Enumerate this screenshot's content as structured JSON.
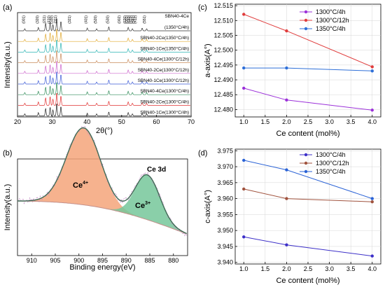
{
  "panel_labels": [
    "(a)",
    "(b)",
    "(c)",
    "(d)"
  ],
  "chart_data": [
    {
      "panel": "(a)",
      "type": "line",
      "xlabel": "2θ(°)",
      "ylabel": "Intensity(a.u.)",
      "xlim": [
        20,
        70
      ],
      "xticks": [
        20,
        30,
        40,
        50,
        60,
        70
      ],
      "peak_positions": [
        22.1,
        26.0,
        28.1,
        29.4,
        30.2,
        31.3,
        32.5,
        40.1,
        42.8,
        46.3,
        51.9,
        53.1,
        55.9,
        57.2
      ],
      "hkl_labels": [
        "(001)",
        "(320)",
        "(211)",
        "(410)",
        "(330)",
        "(311)",
        "(321)",
        "(401)",
        "(520)",
        "(530)",
        "(002)",
        "(630)",
        "(001)",
        "(640)",
        "(322)",
        "(541)",
        "(412)",
        "(551)"
      ],
      "series": [
        {
          "name": "SBN40-4Ce(1350°C/4h)",
          "color": "#333333"
        },
        {
          "name": "SBN40-2Ce(1350°C/4h)",
          "color": "#e0a82e"
        },
        {
          "name": "SBN40-1Ce(1350°C/4h)",
          "color": "#2ab3b3"
        },
        {
          "name": "SBN40-4Ce(1300°C/12h)",
          "color": "#c98b5a"
        },
        {
          "name": "SBN40-2Ce(1300°C/12h)",
          "color": "#cc66cc"
        },
        {
          "name": "SBN40-1Ce(1300°C/12h)",
          "color": "#3d5bd6"
        },
        {
          "name": "SBN40-4Ce(1300°C/4h)",
          "color": "#2e8b57"
        },
        {
          "name": "SBN40-2Ce(1300°C/4h)",
          "color": "#e03030"
        },
        {
          "name": "SBN40-1Ce(1300°C/4h)",
          "color": "#222222"
        }
      ],
      "label_texts": [
        "SBN40-4Ce",
        "(1350°C/4h)",
        "SBN40-2Ce(1350°C/4h)",
        "SBN40-1Ce(1350°C/4h)",
        "SBN40-4Ce(1300°C/12h)",
        "SBN40-2Ce(1300°C/12h)",
        "SBN40-1Ce(1300°C/12h)",
        "SBN40-4Ce(1300°C/4h)",
        "SBN40-2Ce(1300°C/4h)",
        "SBN40-1Ce(1300°C/4h)"
      ]
    },
    {
      "panel": "(b)",
      "type": "line",
      "title": "Ce 3d",
      "xlabel": "Binding energy(eV)",
      "ylabel": "Intensity(a.u.)",
      "xlim": [
        913,
        877
      ],
      "xticks": [
        910,
        905,
        900,
        895,
        890,
        885,
        880
      ],
      "peaks": [
        {
          "label": "Ce4+",
          "center": 899.0,
          "height": 0.55,
          "width": 3.6,
          "color": "#f4a47a"
        },
        {
          "label": "Ce3+",
          "center": 885.5,
          "height": 0.32,
          "width": 2.6,
          "color": "#76c79a"
        }
      ],
      "peak_label_main": [
        "Ce",
        "Ce"
      ],
      "peak_label_sup": [
        "4+",
        "3+"
      ],
      "fit_color": "#3f6b55",
      "background_color": "#c4908a",
      "raw_color": "#c48fc4"
    },
    {
      "panel": "(c)",
      "type": "line",
      "xlabel": "Ce content (mol%)",
      "ylabel": "a-axis(A°)",
      "xlim": [
        0.8,
        4.2
      ],
      "ylim": [
        12.4775,
        12.5155
      ],
      "xticks": [
        1.0,
        1.5,
        2.0,
        2.5,
        3.0,
        3.5,
        4.0
      ],
      "yticks": [
        12.48,
        12.485,
        12.49,
        12.495,
        12.5,
        12.505,
        12.51,
        12.515
      ],
      "x": [
        1.0,
        2.0,
        4.0
      ],
      "legend_position": "top-right",
      "series": [
        {
          "name": "1300°C/4h",
          "values": [
            12.4872,
            12.4832,
            12.4798
          ],
          "color": "#9b30d9"
        },
        {
          "name": "1300°C/12h",
          "values": [
            12.5121,
            12.5065,
            12.4944
          ],
          "color": "#e03c3c"
        },
        {
          "name": "1350°C/4h",
          "values": [
            12.494,
            12.494,
            12.493
          ],
          "color": "#2e6fd8"
        }
      ]
    },
    {
      "panel": "(d)",
      "type": "line",
      "xlabel": "Ce content (mol%)",
      "ylabel": "c-axis(A°)",
      "xlim": [
        0.8,
        4.2
      ],
      "ylim": [
        3.9395,
        3.9755
      ],
      "xticks": [
        1.0,
        1.5,
        2.0,
        2.5,
        3.0,
        3.5,
        4.0
      ],
      "yticks": [
        3.94,
        3.945,
        3.95,
        3.955,
        3.96,
        3.965,
        3.97,
        3.975
      ],
      "x": [
        1.0,
        2.0,
        4.0
      ],
      "legend_position": "top-right",
      "series": [
        {
          "name": "1300°C/4h",
          "values": [
            3.948,
            3.9455,
            3.942
          ],
          "color": "#3c2fc8"
        },
        {
          "name": "1300°C/12h",
          "values": [
            3.963,
            3.96,
            3.959
          ],
          "color": "#a0523d"
        },
        {
          "name": "1350°C/4h",
          "values": [
            3.972,
            3.969,
            3.96
          ],
          "color": "#2a62d6"
        }
      ]
    }
  ]
}
